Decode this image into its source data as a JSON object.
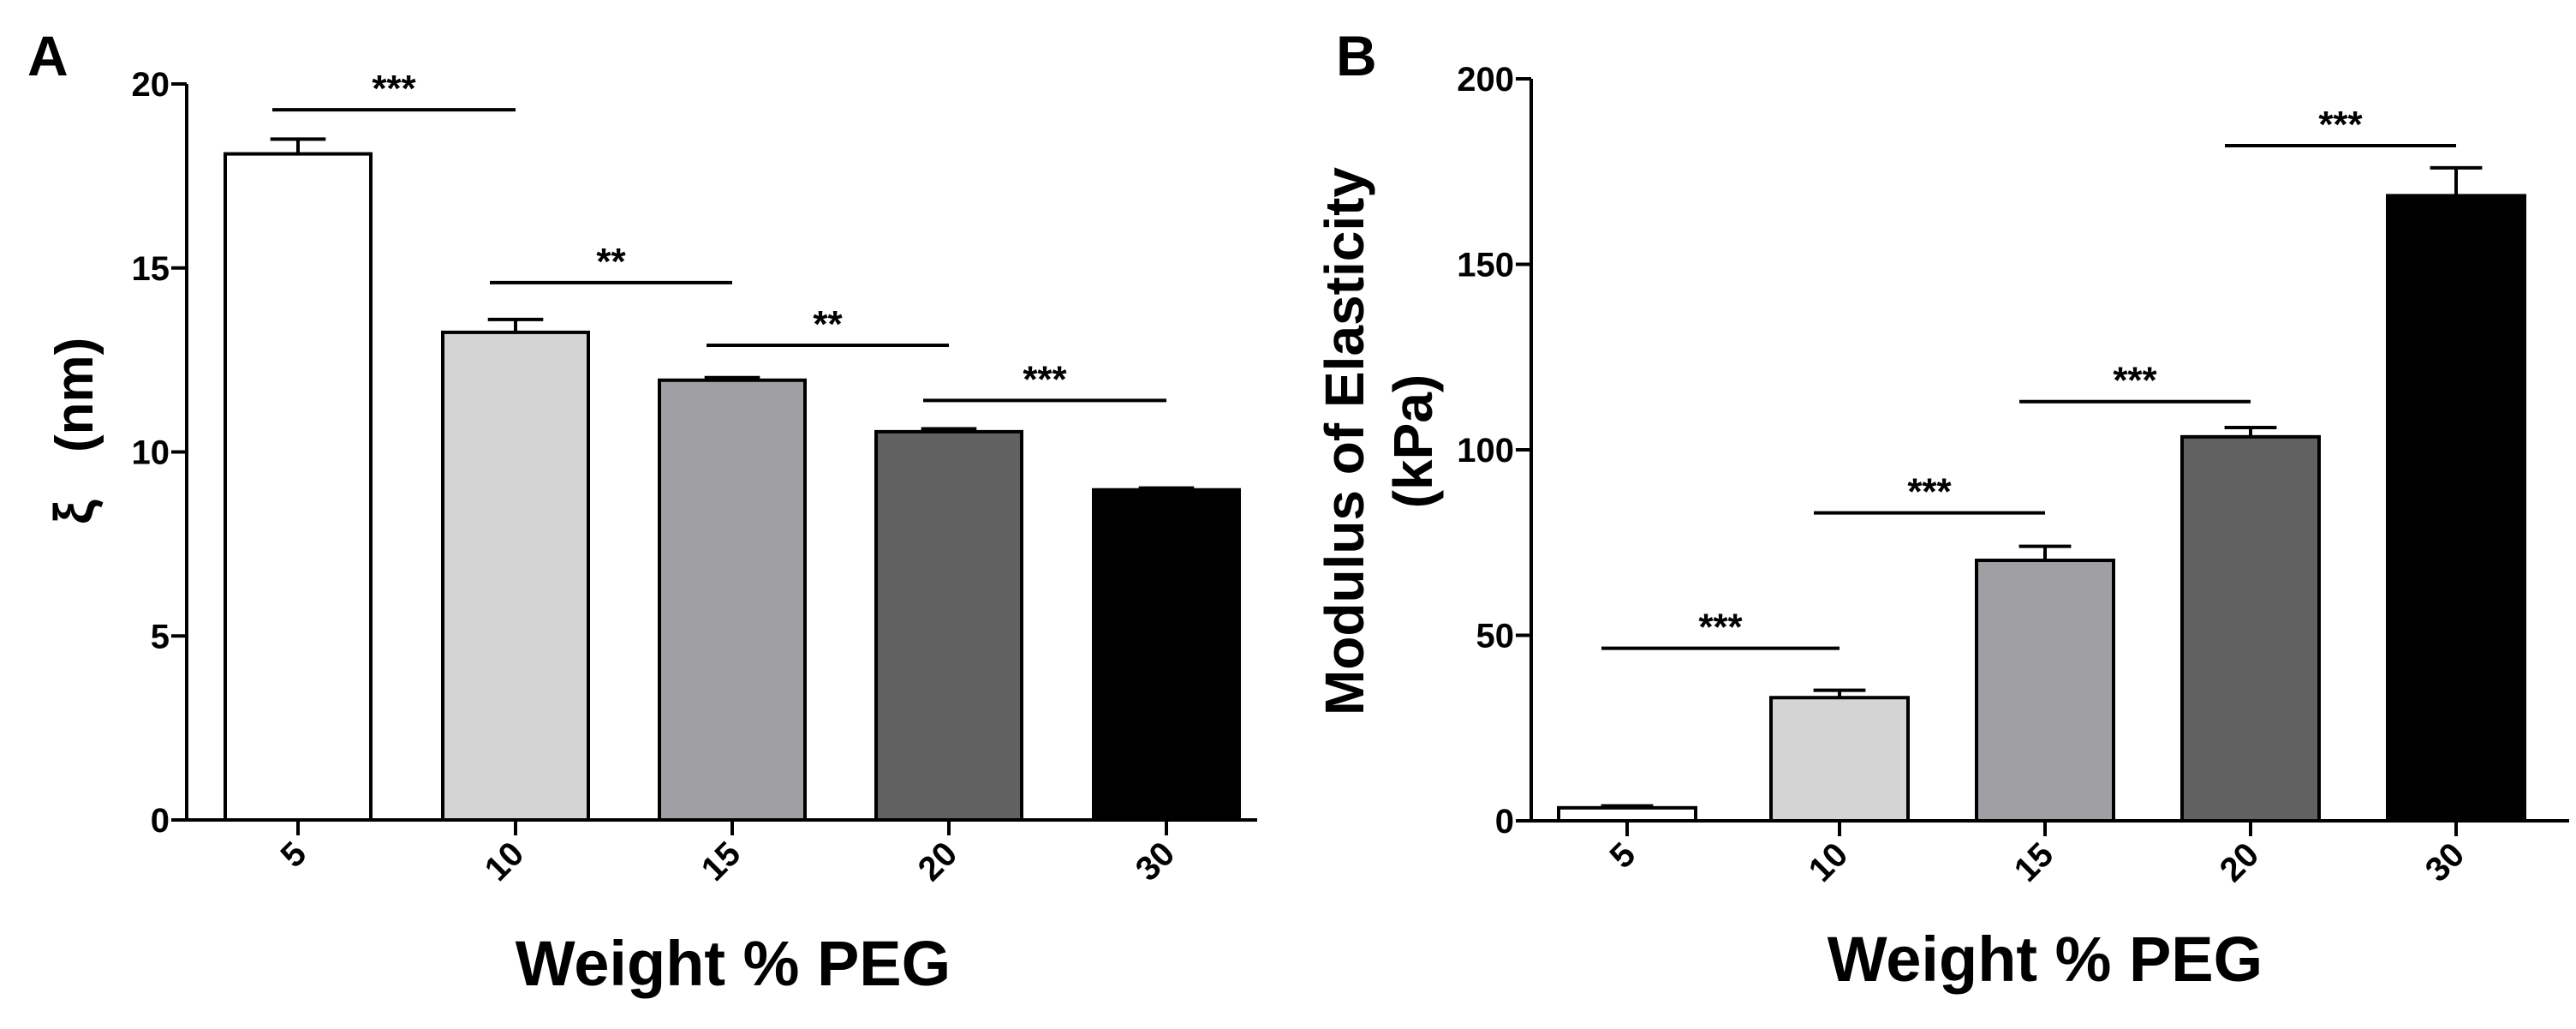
{
  "chart_data": [
    {
      "panel_label": "A",
      "type": "bar",
      "xlabel": "Weight % PEG",
      "ylabel_symbol": "ξ",
      "ylabel": "(nm)",
      "ylim": [
        0,
        20
      ],
      "yticks": [
        0,
        5,
        10,
        15,
        20
      ],
      "categories": [
        "5",
        "10",
        "15",
        "20",
        "30"
      ],
      "values": [
        18.1,
        13.25,
        11.95,
        10.55,
        8.97
      ],
      "errors": [
        0.4,
        0.35,
        0.07,
        0.08,
        0.05
      ],
      "bar_colors": [
        "#ffffff",
        "#d4d4d4",
        "#a0a0a4",
        "#616161",
        "#000000"
      ],
      "significance": [
        {
          "from": 0,
          "to": 1,
          "label": "***",
          "y": 19.3
        },
        {
          "from": 1,
          "to": 2,
          "label": "**",
          "y": 14.6
        },
        {
          "from": 2,
          "to": 3,
          "label": "**",
          "y": 12.9
        },
        {
          "from": 3,
          "to": 4,
          "label": "***",
          "y": 11.4
        }
      ]
    },
    {
      "panel_label": "B",
      "type": "bar",
      "xlabel": "Weight % PEG",
      "ylabel": "Modulus of Elasticity",
      "ylabel_line2": "(kPa)",
      "ylim": [
        0,
        200
      ],
      "yticks": [
        0,
        50,
        100,
        150,
        200
      ],
      "categories": [
        "5",
        "10",
        "15",
        "20",
        "30"
      ],
      "values": [
        3.5,
        33.2,
        70.2,
        103.5,
        168.5
      ],
      "errors": [
        0.5,
        2.0,
        3.8,
        2.5,
        7.5
      ],
      "bar_colors": [
        "#ffffff",
        "#d4d4d4",
        "#a0a0a4",
        "#616161",
        "#000000"
      ],
      "significance": [
        {
          "from": 0,
          "to": 1,
          "label": "***",
          "y": 46.5
        },
        {
          "from": 1,
          "to": 2,
          "label": "***",
          "y": 83
        },
        {
          "from": 2,
          "to": 3,
          "label": "***",
          "y": 113
        },
        {
          "from": 3,
          "to": 4,
          "label": "***",
          "y": 182
        }
      ]
    }
  ]
}
